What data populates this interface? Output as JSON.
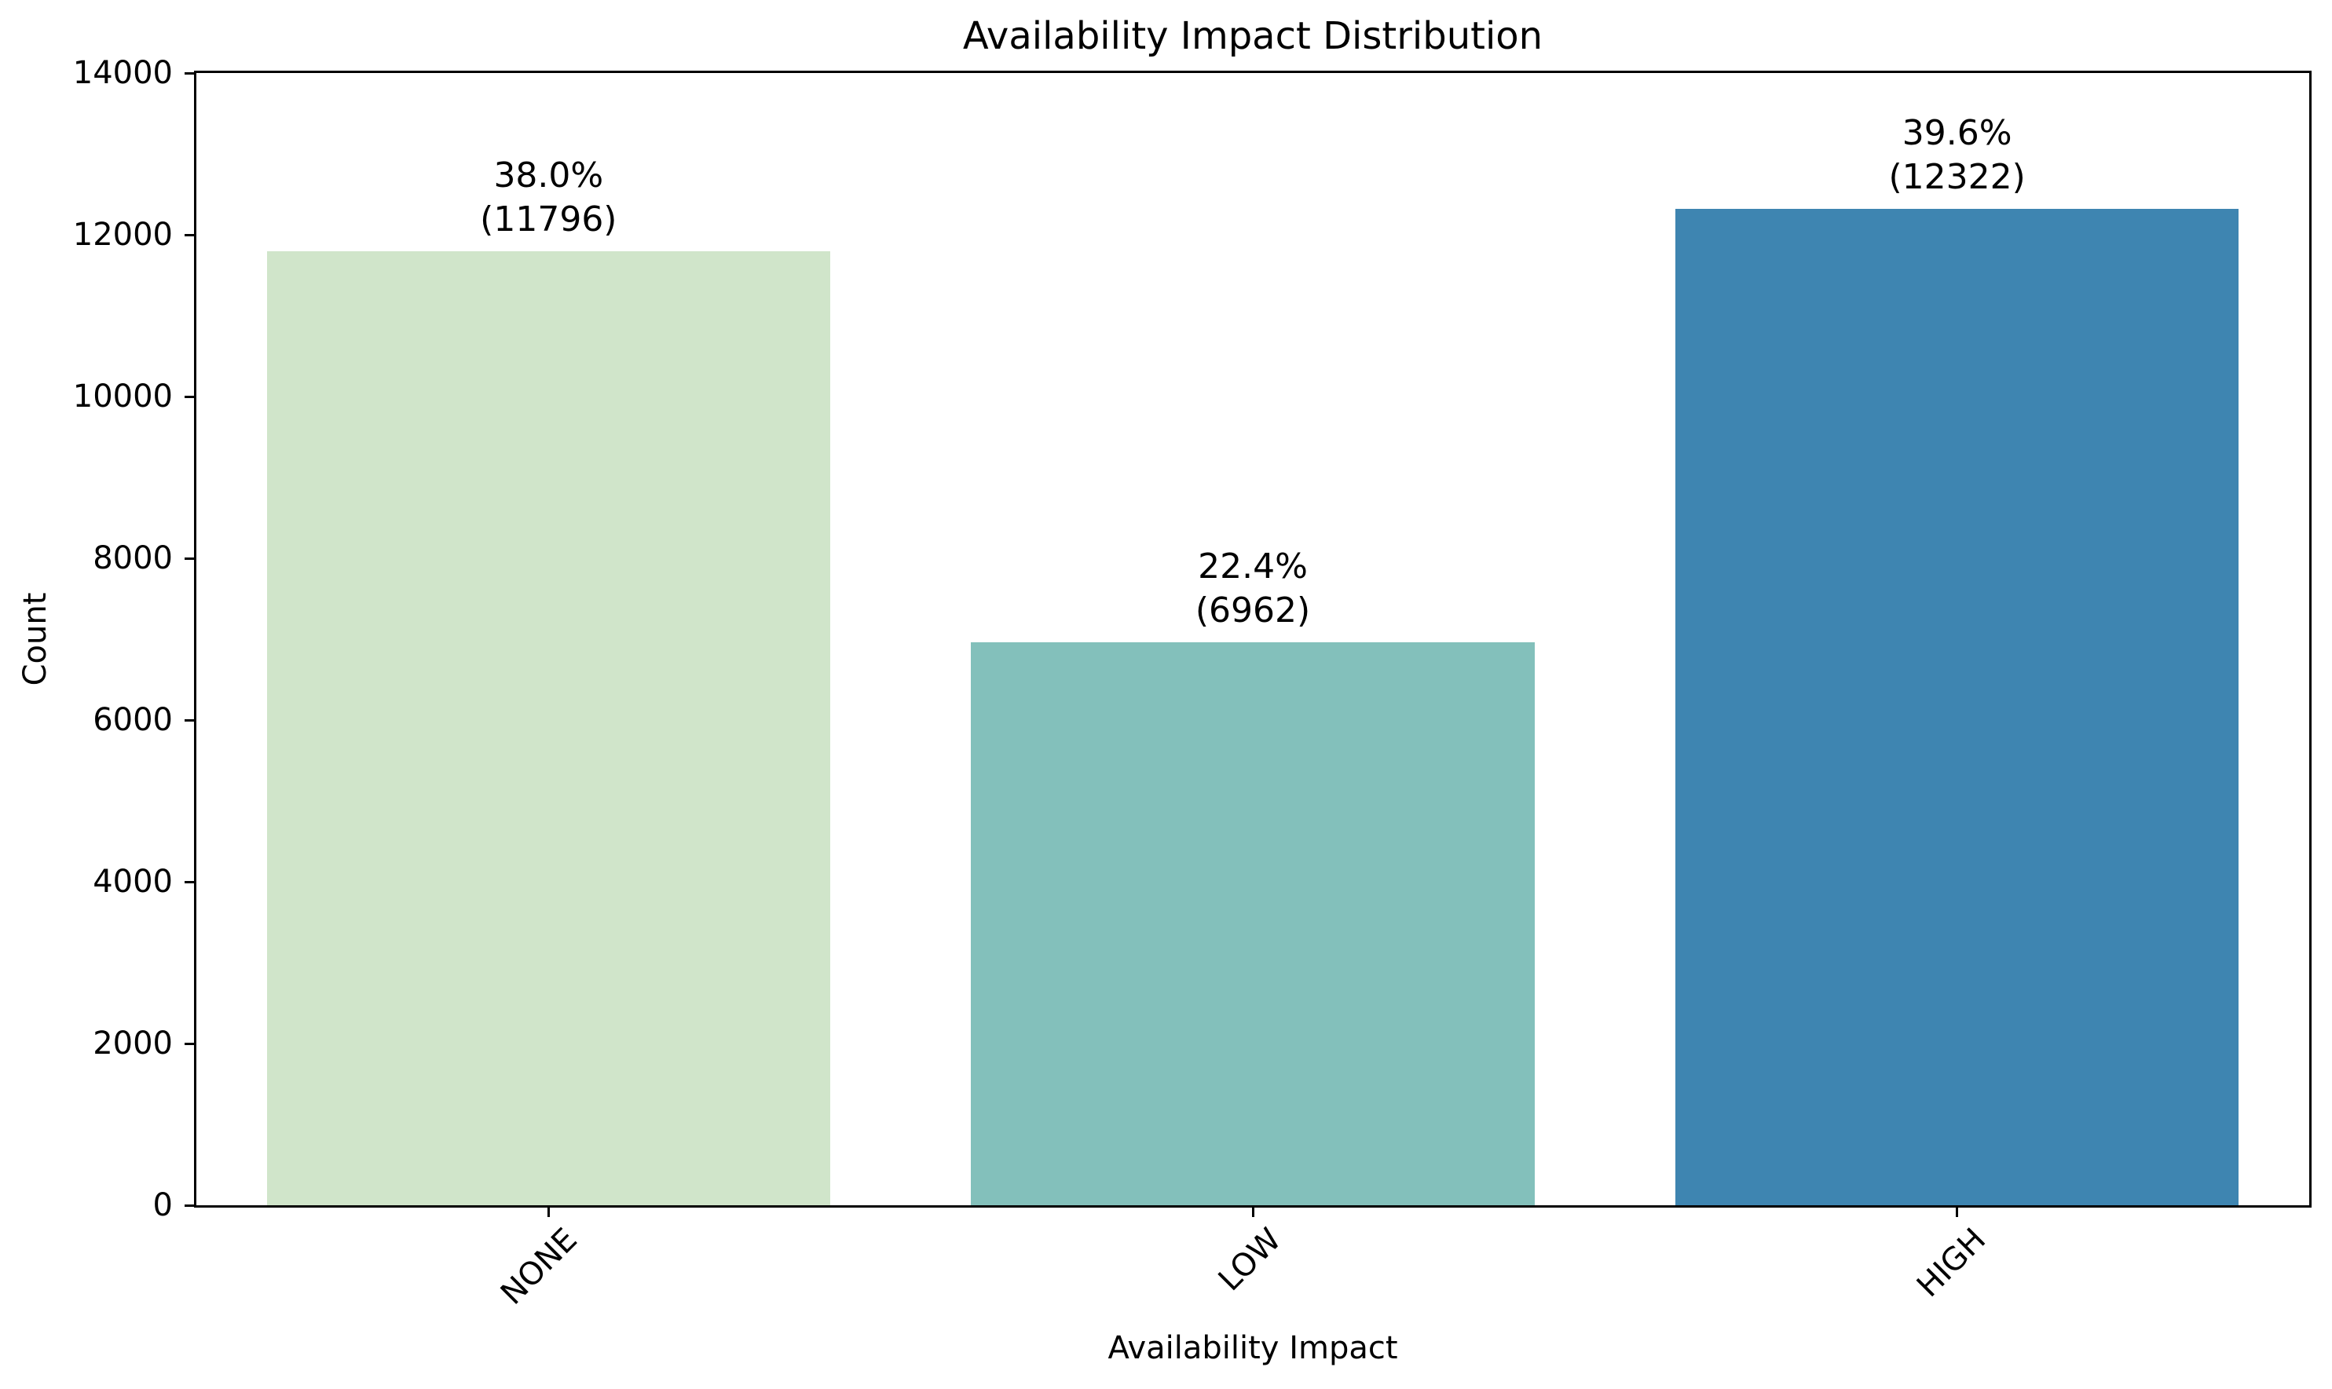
{
  "chart_data": {
    "type": "bar",
    "title": "Availability Impact Distribution",
    "xlabel": "Availability Impact",
    "ylabel": "Count",
    "categories": [
      "NONE",
      "LOW",
      "HIGH"
    ],
    "values": [
      11796,
      6962,
      12322
    ],
    "series": [
      {
        "name": "Count",
        "values": [
          11796,
          6962,
          12322
        ]
      }
    ],
    "annotations": [
      {
        "percent": "38.0%",
        "count": "(11796)"
      },
      {
        "percent": "22.4%",
        "count": "(6962)"
      },
      {
        "percent": "39.6%",
        "count": "(12322)"
      }
    ],
    "bar_colors": [
      "#d0e5ca",
      "#83c0bb",
      "#3e85b1"
    ],
    "ylim": [
      0,
      14000
    ],
    "yticks": [
      0,
      2000,
      4000,
      6000,
      8000,
      10000,
      12000,
      14000
    ],
    "ytick_labels": [
      "0",
      "2000",
      "4000",
      "6000",
      "8000",
      "10000",
      "12000",
      "14000"
    ],
    "xtick_rotation_deg": 45,
    "grid": false,
    "legend_position": "none",
    "background_color": "#ffffff",
    "axis_color": "#000000",
    "text_color": "#000000"
  }
}
